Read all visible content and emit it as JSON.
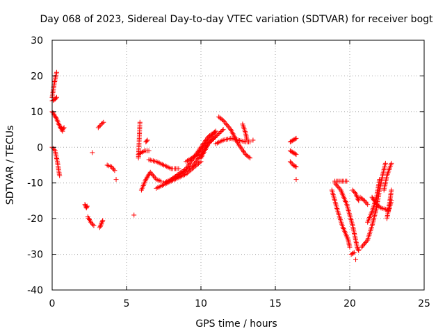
{
  "chart_data": {
    "type": "scatter",
    "title": "Day 068 of 2023, Sidereal Day-to-day VTEC variation (SDTVAR) for receiver bogt",
    "xlabel": "GPS time / hours",
    "ylabel": "SDTVAR / TECUs",
    "xlim": [
      0,
      25
    ],
    "ylim": [
      -40,
      30
    ],
    "xticks": [
      0,
      5,
      10,
      15,
      20,
      25
    ],
    "yticks": [
      -40,
      -30,
      -20,
      -10,
      0,
      10,
      20,
      30
    ],
    "grid": true,
    "marker": "+",
    "color": "#ff0000",
    "segments": [
      [
        [
          0.0,
          14.0
        ],
        [
          0.15,
          18.0
        ],
        [
          0.3,
          21.0
        ]
      ],
      [
        [
          0.0,
          13.0
        ],
        [
          0.2,
          13.5
        ],
        [
          0.3,
          14.0
        ]
      ],
      [
        [
          0.0,
          10.0
        ],
        [
          0.3,
          8.0
        ],
        [
          0.5,
          6.0
        ],
        [
          0.7,
          4.5
        ]
      ],
      [
        [
          0.6,
          5.5
        ],
        [
          0.7,
          5.0
        ],
        [
          0.8,
          5.5
        ]
      ],
      [
        [
          0.0,
          0.0
        ],
        [
          0.2,
          -1.0
        ],
        [
          0.35,
          -4.0
        ],
        [
          0.5,
          -8.0
        ]
      ],
      [
        [
          2.2,
          -16.0
        ],
        [
          2.3,
          -17.0
        ],
        [
          2.35,
          -16.5
        ]
      ],
      [
        [
          2.4,
          -19.5
        ],
        [
          2.6,
          -21.0
        ],
        [
          2.8,
          -22.0
        ]
      ],
      [
        [
          2.7,
          -1.5
        ]
      ],
      [
        [
          3.1,
          5.5
        ],
        [
          3.3,
          6.5
        ],
        [
          3.45,
          7.0
        ]
      ],
      [
        [
          3.2,
          -22.5
        ],
        [
          3.3,
          -21.5
        ],
        [
          3.4,
          -20.5
        ]
      ],
      [
        [
          3.7,
          -5.0
        ],
        [
          4.0,
          -5.5
        ],
        [
          4.2,
          -6.5
        ]
      ],
      [
        [
          4.3,
          -9.0
        ]
      ],
      [
        [
          5.5,
          -19.0
        ]
      ],
      [
        [
          5.8,
          -3.0
        ],
        [
          5.85,
          2.0
        ],
        [
          5.9,
          7.0
        ]
      ],
      [
        [
          5.8,
          -2.0
        ],
        [
          6.2,
          -1.0
        ],
        [
          6.5,
          -1.0
        ]
      ],
      [
        [
          6.3,
          1.5
        ],
        [
          6.4,
          2.0
        ]
      ],
      [
        [
          6.0,
          -12.0
        ],
        [
          6.3,
          -9.0
        ],
        [
          6.6,
          -7.0
        ],
        [
          7.0,
          -9.0
        ],
        [
          7.3,
          -9.5
        ]
      ],
      [
        [
          6.5,
          -3.5
        ],
        [
          7.0,
          -4.0
        ],
        [
          7.5,
          -5.0
        ],
        [
          8.0,
          -6.0
        ],
        [
          8.5,
          -6.0
        ]
      ],
      [
        [
          7.0,
          -11.5
        ],
        [
          8.0,
          -9.5
        ],
        [
          9.0,
          -7.5
        ],
        [
          10.0,
          -4.0
        ]
      ],
      [
        [
          7.5,
          -10.0
        ],
        [
          8.5,
          -8.0
        ],
        [
          9.5,
          -5.0
        ],
        [
          10.0,
          -2.0
        ],
        [
          10.5,
          1.0
        ],
        [
          11.0,
          3.0
        ]
      ],
      [
        [
          8.0,
          -9.0
        ],
        [
          9.0,
          -6.0
        ],
        [
          10.0,
          0.0
        ],
        [
          10.5,
          3.0
        ],
        [
          11.0,
          4.5
        ]
      ],
      [
        [
          9.0,
          -4.0
        ],
        [
          9.8,
          -2.0
        ],
        [
          10.5,
          2.0
        ],
        [
          11.0,
          4.5
        ]
      ],
      [
        [
          10.0,
          -3.0
        ],
        [
          10.5,
          1.0
        ],
        [
          11.0,
          3.0
        ],
        [
          11.5,
          5.0
        ]
      ],
      [
        [
          11.2,
          8.5
        ],
        [
          11.5,
          7.5
        ],
        [
          12.0,
          5.0
        ],
        [
          12.5,
          1.0
        ],
        [
          13.0,
          -2.0
        ],
        [
          13.3,
          -3.0
        ]
      ],
      [
        [
          11.0,
          1.0
        ],
        [
          11.5,
          2.0
        ],
        [
          12.0,
          2.5
        ],
        [
          12.5,
          2.0
        ],
        [
          13.0,
          1.5
        ],
        [
          13.3,
          1.5
        ]
      ],
      [
        [
          12.8,
          6.5
        ],
        [
          13.0,
          4.0
        ],
        [
          13.1,
          2.0
        ]
      ],
      [
        [
          13.5,
          2.0
        ]
      ],
      [
        [
          16.0,
          1.5
        ],
        [
          16.2,
          2.0
        ],
        [
          16.4,
          2.5
        ]
      ],
      [
        [
          16.0,
          -1.0
        ],
        [
          16.2,
          -1.5
        ],
        [
          16.4,
          -2.0
        ]
      ],
      [
        [
          16.0,
          -4.0
        ],
        [
          16.2,
          -5.0
        ],
        [
          16.4,
          -5.5
        ]
      ],
      [
        [
          16.4,
          -9.0
        ]
      ],
      [
        [
          18.8,
          -12.0
        ],
        [
          19.2,
          -18.0
        ],
        [
          19.5,
          -22.0
        ],
        [
          19.9,
          -26.0
        ],
        [
          20.0,
          -28.0
        ]
      ],
      [
        [
          19.0,
          -10.0
        ],
        [
          19.4,
          -12.0
        ],
        [
          19.8,
          -16.0
        ],
        [
          20.2,
          -22.0
        ],
        [
          20.5,
          -28.0
        ],
        [
          20.6,
          -29.0
        ]
      ],
      [
        [
          19.0,
          -9.5
        ],
        [
          19.4,
          -9.5
        ],
        [
          19.8,
          -9.5
        ]
      ],
      [
        [
          20.1,
          -30.0
        ],
        [
          20.3,
          -29.5
        ]
      ],
      [
        [
          20.4,
          -31.5
        ]
      ],
      [
        [
          20.2,
          -12.0
        ],
        [
          20.4,
          -13.0
        ],
        [
          20.6,
          -15.0
        ]
      ],
      [
        [
          20.7,
          -14.0
        ],
        [
          21.0,
          -15.0
        ],
        [
          21.2,
          -16.0
        ]
      ],
      [
        [
          20.8,
          -28.0
        ],
        [
          21.2,
          -26.0
        ],
        [
          21.5,
          -22.0
        ],
        [
          21.8,
          -17.0
        ],
        [
          22.0,
          -12.0
        ],
        [
          22.2,
          -8.0
        ],
        [
          22.4,
          -4.5
        ]
      ],
      [
        [
          21.2,
          -21.0
        ],
        [
          21.5,
          -18.0
        ],
        [
          21.8,
          -14.0
        ],
        [
          22.0,
          -9.0
        ]
      ],
      [
        [
          21.5,
          -14.0
        ],
        [
          21.8,
          -16.0
        ],
        [
          22.1,
          -17.0
        ],
        [
          22.5,
          -17.5
        ]
      ],
      [
        [
          22.3,
          -12.0
        ],
        [
          22.5,
          -8.0
        ],
        [
          22.8,
          -4.5
        ]
      ],
      [
        [
          22.5,
          -20.0
        ],
        [
          22.7,
          -15.0
        ],
        [
          22.8,
          -12.0
        ]
      ],
      [
        [
          22.6,
          -18.0
        ],
        [
          22.8,
          -15.0
        ]
      ]
    ]
  }
}
